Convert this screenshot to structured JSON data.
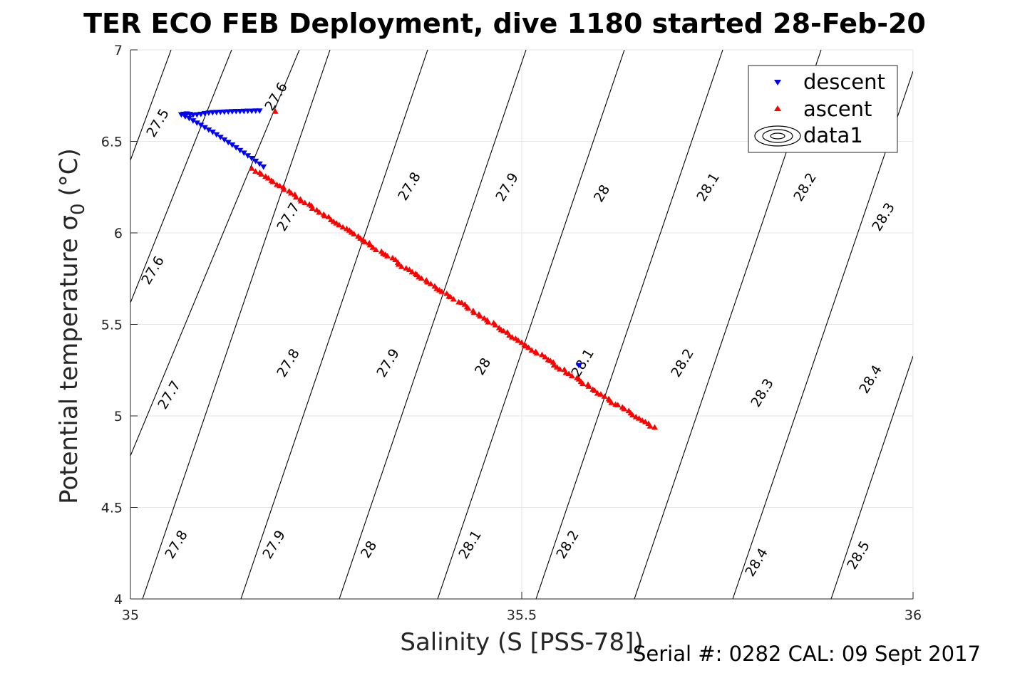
{
  "chart_data": {
    "type": "scatter",
    "title": "TER ECO FEB Deployment, dive 1180 started 28-Feb-20",
    "xlabel": "Salinity (S [PSS-78])",
    "ylabel": "Potential temperature σ",
    "ylabel_sub": "0",
    "ylabel_unit": "(°C)",
    "xlim": [
      35,
      36
    ],
    "ylim": [
      4,
      7
    ],
    "xticks": [
      35,
      35.5,
      36
    ],
    "xtick_labels": [
      "35",
      "35.5",
      "36"
    ],
    "yticks": [
      4,
      4.5,
      5,
      5.5,
      6,
      6.5,
      7
    ],
    "ytick_labels": [
      "4",
      "4.5",
      "5",
      "5.5",
      "6",
      "6.5",
      "7"
    ],
    "grid": true,
    "legend_position": "top-right",
    "series": [
      {
        "name": "descent",
        "marker": "triangle-down",
        "color": "#0000ff",
        "points": [
          [
            35.065,
            6.645
          ],
          [
            35.068,
            6.648
          ],
          [
            35.072,
            6.65
          ],
          [
            35.076,
            6.647
          ],
          [
            35.08,
            6.643
          ],
          [
            35.085,
            6.645
          ],
          [
            35.09,
            6.648
          ],
          [
            35.095,
            6.652
          ],
          [
            35.1,
            6.655
          ],
          [
            35.105,
            6.657
          ],
          [
            35.11,
            6.658
          ],
          [
            35.115,
            6.659
          ],
          [
            35.12,
            6.66
          ],
          [
            35.125,
            6.661
          ],
          [
            35.13,
            6.662
          ],
          [
            35.135,
            6.663
          ],
          [
            35.14,
            6.663
          ],
          [
            35.145,
            6.664
          ],
          [
            35.15,
            6.665
          ],
          [
            35.155,
            6.665
          ],
          [
            35.16,
            6.666
          ],
          [
            35.165,
            6.666
          ],
          [
            35.07,
            6.635
          ],
          [
            35.075,
            6.625
          ],
          [
            35.08,
            6.612
          ],
          [
            35.085,
            6.6
          ],
          [
            35.09,
            6.588
          ],
          [
            35.095,
            6.575
          ],
          [
            35.1,
            6.562
          ],
          [
            35.105,
            6.55
          ],
          [
            35.11,
            6.536
          ],
          [
            35.115,
            6.522
          ],
          [
            35.12,
            6.508
          ],
          [
            35.125,
            6.494
          ],
          [
            35.13,
            6.48
          ],
          [
            35.135,
            6.465
          ],
          [
            35.14,
            6.45
          ],
          [
            35.145,
            6.436
          ],
          [
            35.15,
            6.421
          ],
          [
            35.155,
            6.406
          ],
          [
            35.16,
            6.391
          ],
          [
            35.165,
            6.376
          ],
          [
            35.17,
            6.36
          ],
          [
            35.573,
            5.275
          ]
        ]
      },
      {
        "name": "ascent",
        "marker": "triangle-up",
        "color": "#ff0000",
        "points_generator": {
          "from": [
            35.157,
            6.35
          ],
          "to": [
            35.668,
            4.935
          ],
          "count": 140,
          "jitter": 0.004
        },
        "extra_points": [
          [
            35.185,
            6.665
          ]
        ]
      },
      {
        "name": "data1",
        "marker": "contour-ellipses",
        "color": "#000000"
      }
    ],
    "density_contours": {
      "levels": [
        27.5,
        27.6,
        27.7,
        27.8,
        27.9,
        28.0,
        28.1,
        28.2,
        28.3,
        28.4,
        28.5
      ],
      "label_values": [
        "27.5",
        "27.6",
        "27.6",
        "27.7",
        "27.7",
        "27.8",
        "27.8",
        "27.8",
        "27.9",
        "27.9",
        "27.9",
        "28",
        "28",
        "28",
        "28.1",
        "28.1",
        "28.1",
        "28.2",
        "28.2",
        "28.2",
        "28.3",
        "28.3",
        "28.4",
        "28.4",
        "28.5"
      ]
    }
  },
  "footer": {
    "serial": "Serial #: 0282  CAL: 09 Sept 2017"
  }
}
